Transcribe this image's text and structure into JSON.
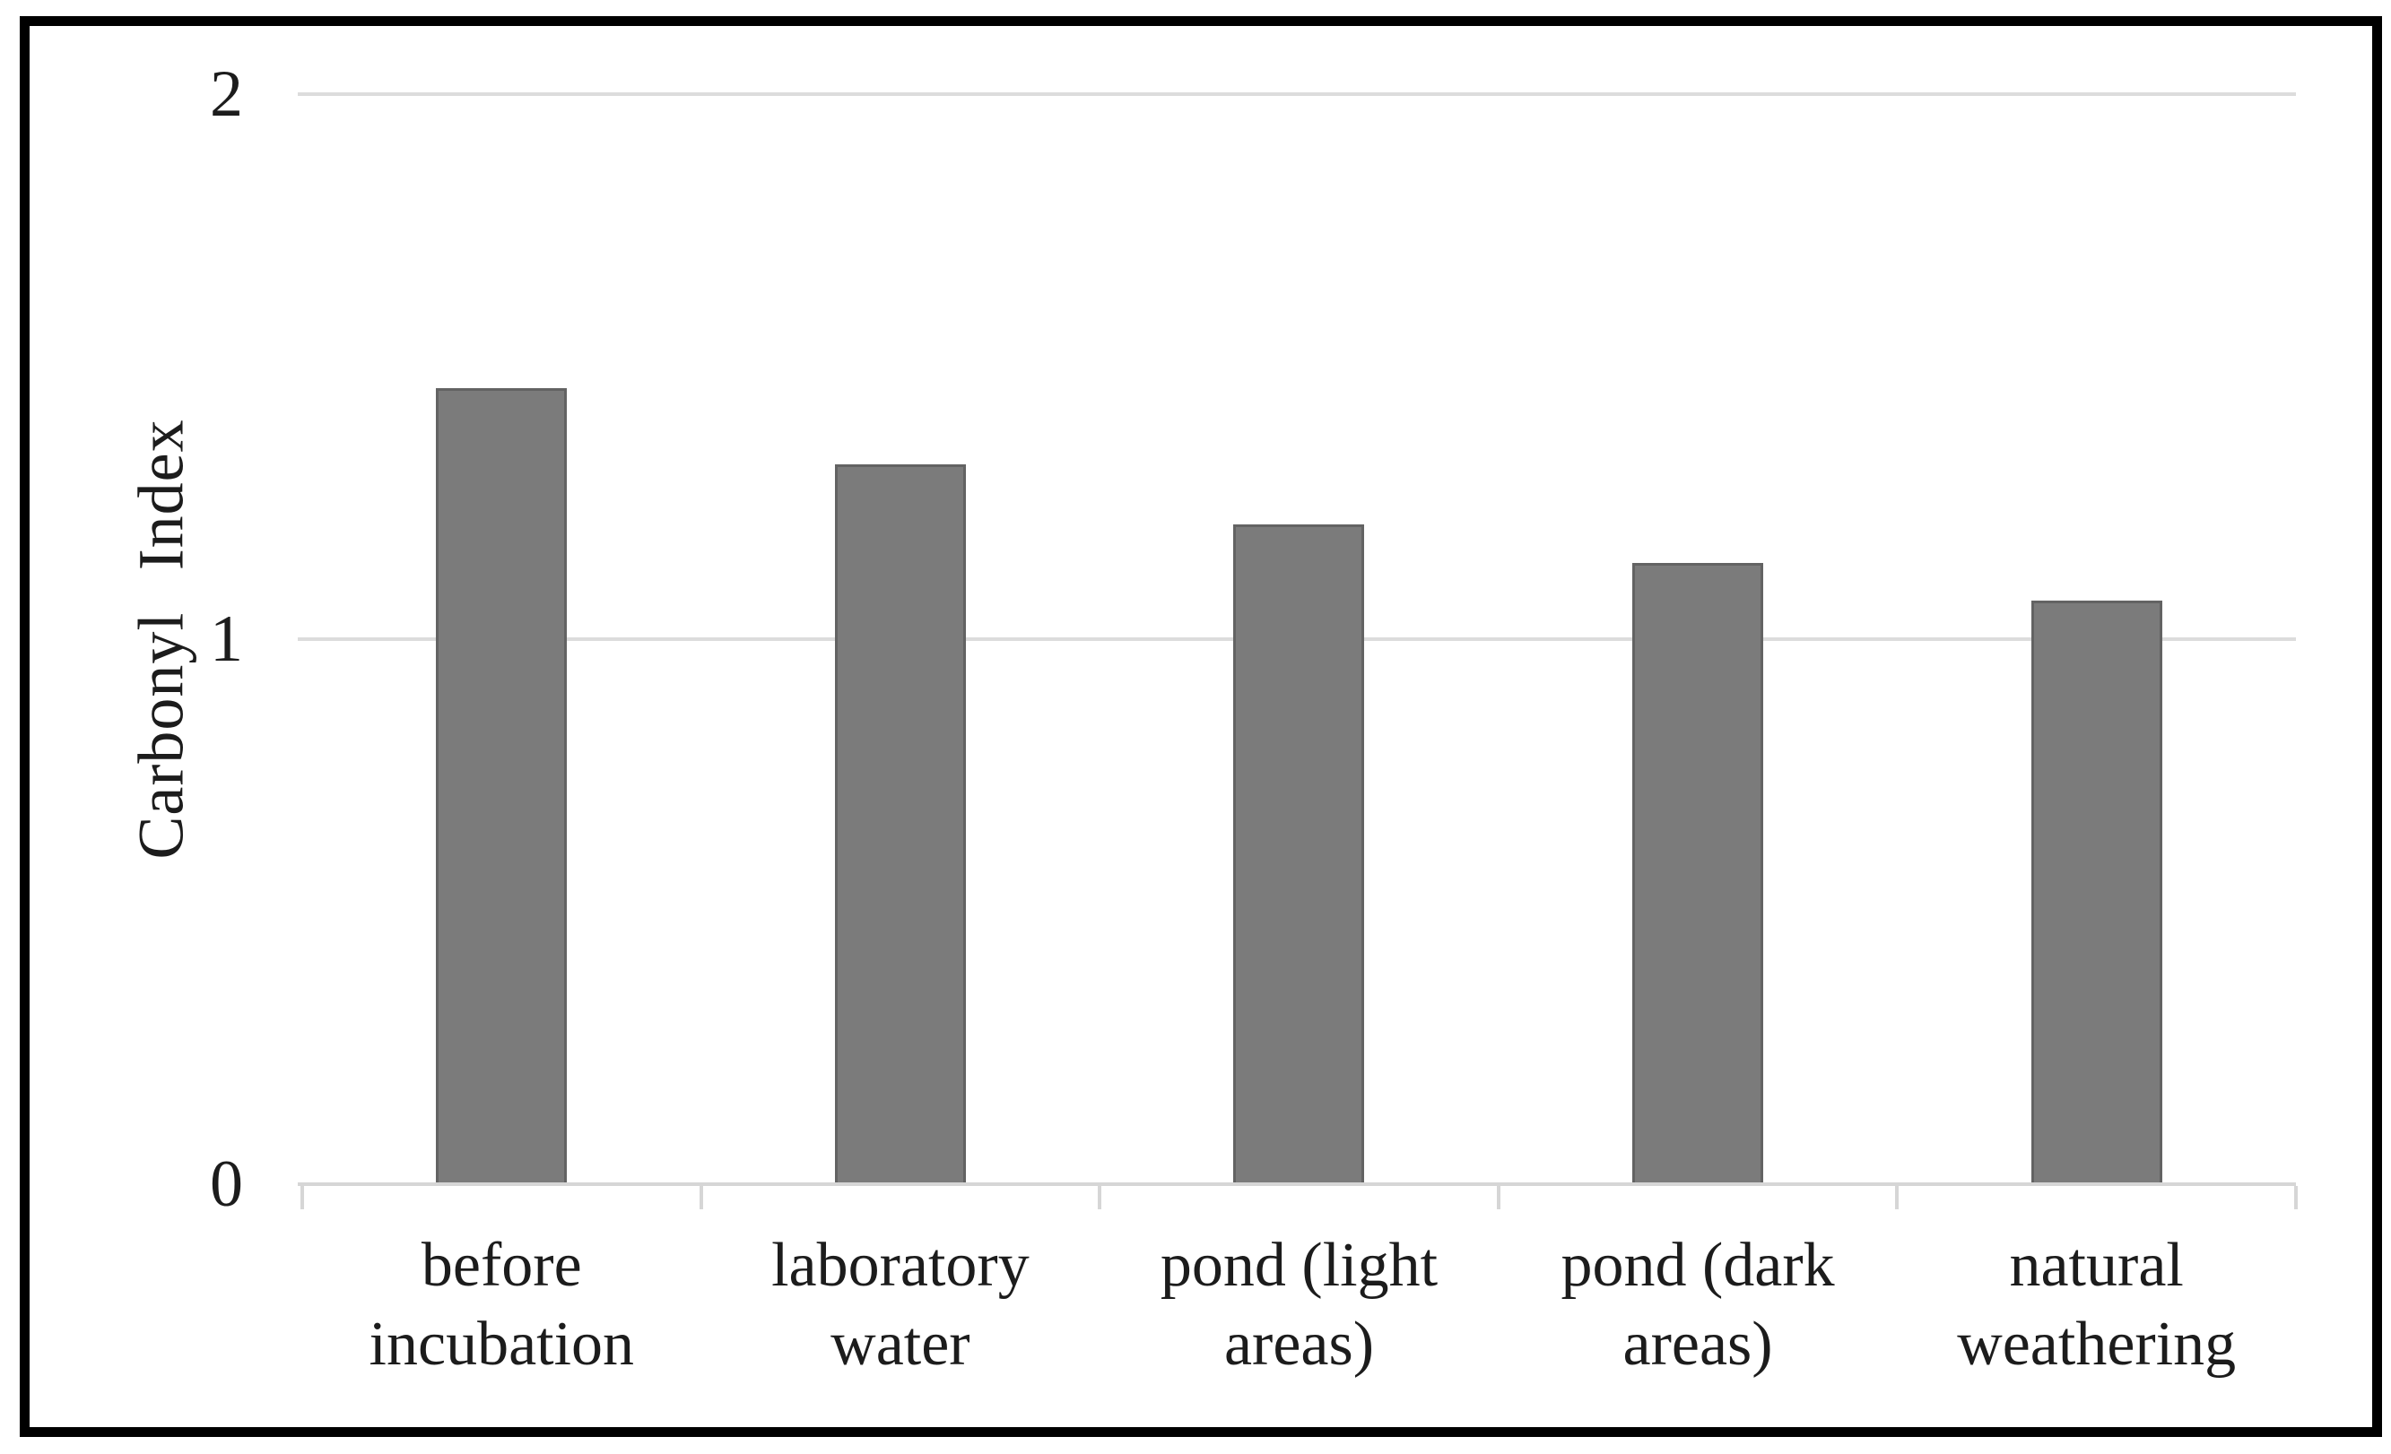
{
  "chart_data": {
    "type": "bar",
    "categories": [
      "before incubation",
      "laboratory water",
      "pond (light areas)",
      "pond (dark areas)",
      "natural weathering"
    ],
    "values": [
      1.46,
      1.32,
      1.21,
      1.14,
      1.07
    ],
    "ylabel": "Carbonyl Index",
    "ylim": [
      0,
      2
    ],
    "yticks": [
      0,
      1,
      2
    ],
    "grid": "horizontal",
    "legend": "none",
    "colors": {
      "bar_fill": "#7b7b7b",
      "bar_border": "#636363",
      "gridline": "#dcdcdc",
      "axis_line": "#d6d6d6",
      "text": "#1c1c1c",
      "frame_border": "#000000",
      "background": "#ffffff"
    }
  }
}
